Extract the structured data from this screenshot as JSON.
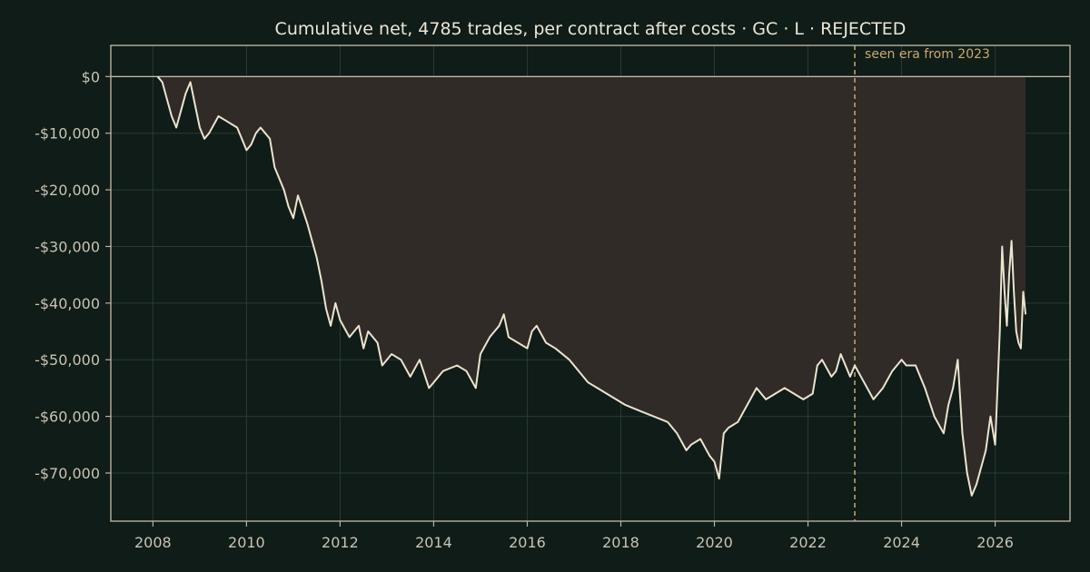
{
  "chart_data": {
    "type": "line",
    "title": "Cumulative net, 4785 trades, per contract after costs  ·  GC · L · REJECTED",
    "xlabel": "",
    "ylabel": "",
    "x_ticks": [
      "2008",
      "2010",
      "2012",
      "2014",
      "2016",
      "2018",
      "2020",
      "2022",
      "2024",
      "2026"
    ],
    "y_ticks": [
      "$0",
      "-$10,000",
      "-$20,000",
      "-$30,000",
      "-$40,000",
      "-$50,000",
      "-$60,000",
      "-$70,000"
    ],
    "y_tick_values": [
      0,
      -10000,
      -20000,
      -30000,
      -40000,
      -50000,
      -60000,
      -70000
    ],
    "xlim": [
      2007.1,
      2027.6
    ],
    "ylim": [
      -78500,
      5500
    ],
    "grid": true,
    "fill_to_zero": true,
    "annotation": {
      "text": "seen era from 2023",
      "x": 2023.0
    },
    "series": [
      {
        "x": [
          2008.1,
          2008.2,
          2008.3,
          2008.4,
          2008.5,
          2008.6,
          2008.7,
          2008.8,
          2008.9,
          2009.0,
          2009.1,
          2009.2,
          2009.4,
          2009.6,
          2009.8,
          2010.0,
          2010.1,
          2010.2,
          2010.3,
          2010.4,
          2010.5,
          2010.6,
          2010.8,
          2010.9,
          2011.0,
          2011.1,
          2011.3,
          2011.5,
          2011.6,
          2011.7,
          2011.8,
          2011.9,
          2012.0,
          2012.2,
          2012.4,
          2012.5,
          2012.6,
          2012.8,
          2012.9,
          2013.1,
          2013.3,
          2013.5,
          2013.7,
          2013.9,
          2014.0,
          2014.2,
          2014.5,
          2014.7,
          2014.9,
          2015.0,
          2015.2,
          2015.3,
          2015.4,
          2015.5,
          2015.6,
          2015.8,
          2016.0,
          2016.1,
          2016.2,
          2016.4,
          2016.6,
          2016.9,
          2017.1,
          2017.3,
          2017.5,
          2017.7,
          2017.9,
          2018.1,
          2018.4,
          2018.7,
          2019.0,
          2019.2,
          2019.4,
          2019.5,
          2019.7,
          2019.9,
          2020.0,
          2020.1,
          2020.2,
          2020.3,
          2020.5,
          2020.7,
          2020.9,
          2021.1,
          2021.3,
          2021.5,
          2021.7,
          2021.9,
          2022.1,
          2022.2,
          2022.3,
          2022.5,
          2022.6,
          2022.7,
          2022.9,
          2023.0,
          2023.2,
          2023.4,
          2023.6,
          2023.8,
          2024.0,
          2024.1,
          2024.3,
          2024.5,
          2024.7,
          2024.9,
          2025.0,
          2025.1,
          2025.2,
          2025.3,
          2025.4,
          2025.5,
          2025.6,
          2025.8,
          2025.9,
          2026.0,
          2026.1,
          2026.15,
          2026.2,
          2026.25,
          2026.3,
          2026.35,
          2026.4,
          2026.45,
          2026.5,
          2026.55,
          2026.6,
          2026.65
        ],
        "y": [
          0,
          -1000,
          -4000,
          -7000,
          -9000,
          -6000,
          -3000,
          -1000,
          -5000,
          -9000,
          -11000,
          -10000,
          -7000,
          -8000,
          -9000,
          -13000,
          -12000,
          -10000,
          -9000,
          -10000,
          -11000,
          -16000,
          -20000,
          -23000,
          -25000,
          -21000,
          -26000,
          -32000,
          -36000,
          -41000,
          -44000,
          -40000,
          -43000,
          -46000,
          -44000,
          -48000,
          -45000,
          -47000,
          -51000,
          -49000,
          -50000,
          -53000,
          -50000,
          -55000,
          -54000,
          -52000,
          -51000,
          -52000,
          -55000,
          -49000,
          -46000,
          -45000,
          -44000,
          -42000,
          -46000,
          -47000,
          -48000,
          -45000,
          -44000,
          -47000,
          -48000,
          -50000,
          -52000,
          -54000,
          -55000,
          -56000,
          -57000,
          -58000,
          -59000,
          -60000,
          -61000,
          -63000,
          -66000,
          -65000,
          -64000,
          -67000,
          -68000,
          -71000,
          -63000,
          -62000,
          -61000,
          -58000,
          -55000,
          -57000,
          -56000,
          -55000,
          -56000,
          -57000,
          -56000,
          -51000,
          -50000,
          -53000,
          -52000,
          -49000,
          -53000,
          -51000,
          -54000,
          -57000,
          -55000,
          -52000,
          -50000,
          -51000,
          -51000,
          -55000,
          -60000,
          -63000,
          -58000,
          -55000,
          -50000,
          -63000,
          -70000,
          -74000,
          -72000,
          -66000,
          -60000,
          -65000,
          -45000,
          -30000,
          -38000,
          -44000,
          -35000,
          -29000,
          -38000,
          -45000,
          -47000,
          -48000,
          -38000,
          -42000
        ],
        "color": "#ece3cf"
      }
    ]
  },
  "colors": {
    "background": "#0f1c17",
    "plot_background": "#0f1c17",
    "fill": "#302b26",
    "line": "#ece3cf",
    "axis": "#b8b2a3",
    "grid": "#2b3a34",
    "annotation": "#c9a96e"
  }
}
